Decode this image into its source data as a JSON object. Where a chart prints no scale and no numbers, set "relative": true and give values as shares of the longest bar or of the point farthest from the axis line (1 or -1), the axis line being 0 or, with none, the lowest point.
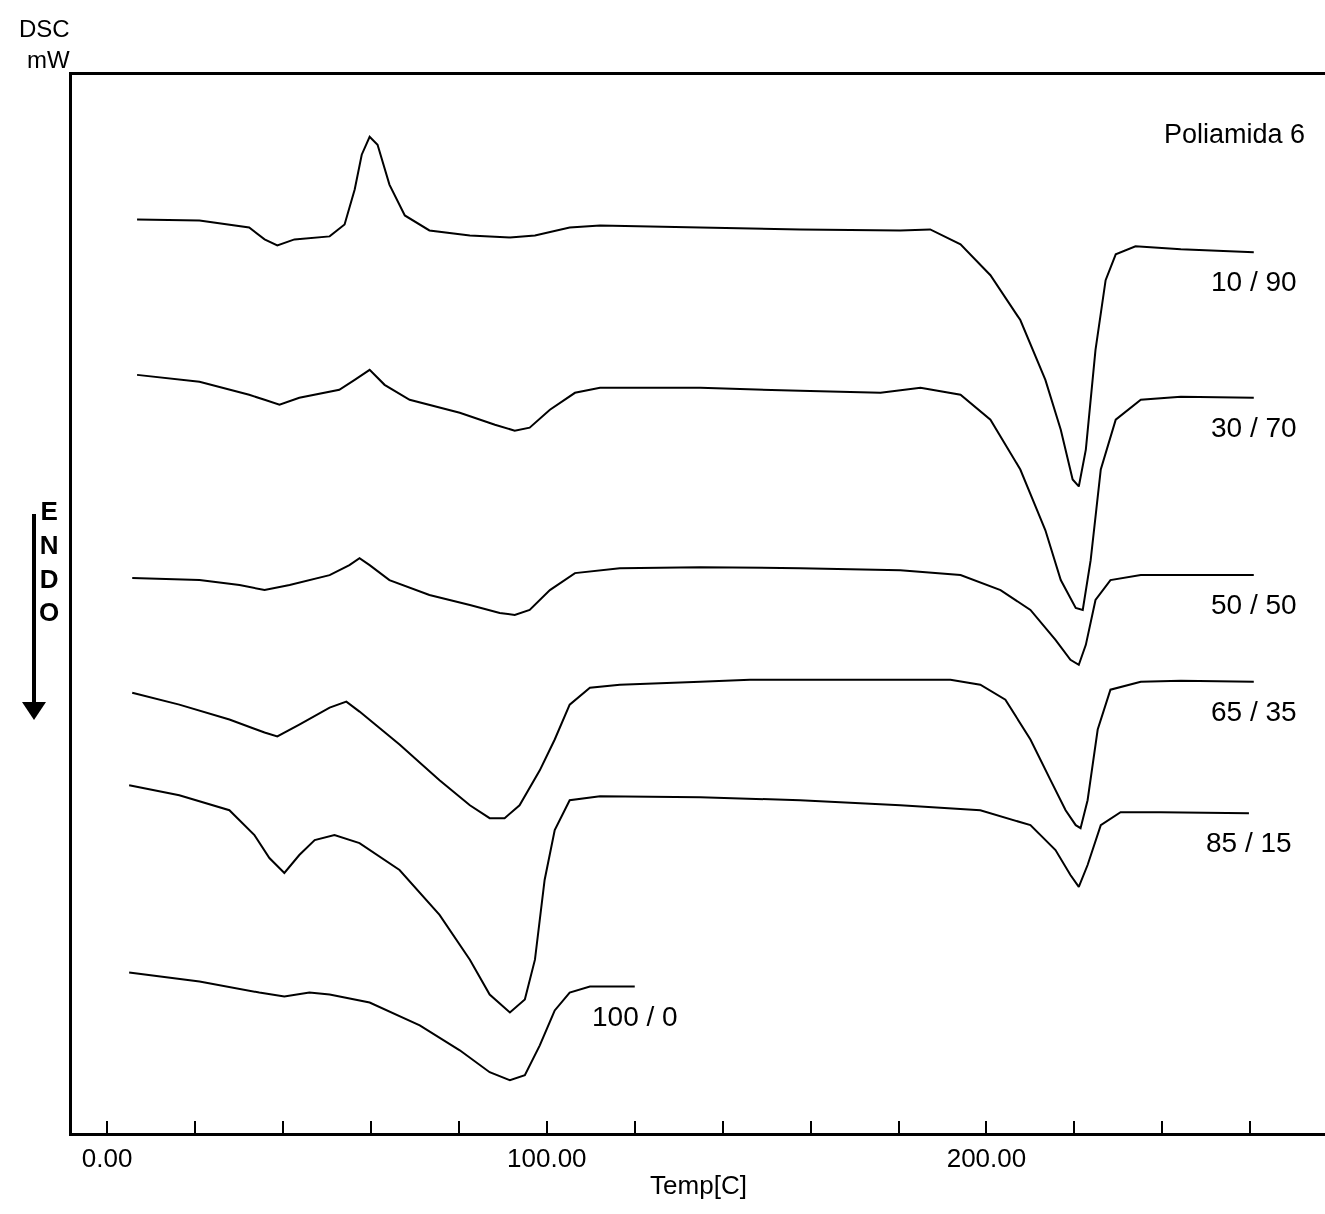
{
  "chart_data": {
    "type": "line",
    "title": "Poliamida 6",
    "xlabel": "Temp[C]",
    "ylabel": "DSC\nmW",
    "relative": true,
    "legend": false,
    "grid": false,
    "marker": "none",
    "line_style": "solid",
    "xlim": [
      -8,
      277
    ],
    "xticks": [
      {
        "value": 0,
        "label": "0.00"
      },
      {
        "value": 20,
        "label": null
      },
      {
        "value": 40,
        "label": null
      },
      {
        "value": 60,
        "label": null
      },
      {
        "value": 80,
        "label": null
      },
      {
        "value": 100,
        "label": "100.00"
      },
      {
        "value": 120,
        "label": null
      },
      {
        "value": 140,
        "label": null
      },
      {
        "value": 160,
        "label": null
      },
      {
        "value": 180,
        "label": null
      },
      {
        "value": 200,
        "label": "200.00"
      },
      {
        "value": 220,
        "label": null
      },
      {
        "value": 240,
        "label": null
      },
      {
        "value": 260,
        "label": null
      }
    ],
    "annotations": [
      "ENDO"
    ],
    "series": [
      {
        "name": "10 / 90",
        "color": "#000000",
        "x": [
          6.8,
          21.0,
          32.3,
          35.8,
          38.7,
          42.6,
          50.6,
          54.0,
          56.3,
          57.9,
          59.7,
          61.5,
          64.2,
          67.7,
          73.3,
          82.5,
          91.6,
          97.3,
          105.2,
          112.1,
          134.9,
          157.6,
          180.4,
          187.2,
          194.1,
          200.9,
          207.7,
          213.4,
          216.9,
          219.6,
          221.0,
          222.6,
          224.8,
          227.1,
          229.4,
          233.9,
          244.2,
          260.8
        ],
        "values": [
          0.917,
          0.916,
          0.909,
          0.897,
          0.891,
          0.897,
          0.9,
          0.912,
          0.947,
          0.982,
          1.0,
          0.992,
          0.952,
          0.921,
          0.906,
          0.901,
          0.899,
          0.901,
          0.909,
          0.911,
          0.909,
          0.907,
          0.906,
          0.907,
          0.892,
          0.861,
          0.816,
          0.756,
          0.706,
          0.656,
          0.649,
          0.686,
          0.786,
          0.856,
          0.882,
          0.89,
          0.887,
          0.884
        ]
      },
      {
        "name": "30 / 70",
        "color": "#000000",
        "x": [
          6.8,
          21.0,
          32.3,
          35.8,
          39.2,
          43.7,
          52.8,
          56.3,
          59.7,
          63.1,
          68.8,
          80.2,
          88.2,
          92.7,
          96.1,
          100.7,
          106.4,
          112.1,
          134.9,
          157.6,
          175.9,
          185.0,
          194.1,
          200.9,
          207.7,
          213.4,
          216.9,
          220.3,
          221.9,
          223.7,
          226.0,
          229.4,
          235.1,
          244.2,
          260.8
        ],
        "values": [
          0.761,
          0.754,
          0.741,
          0.736,
          0.731,
          0.738,
          0.746,
          0.756,
          0.766,
          0.751,
          0.736,
          0.723,
          0.711,
          0.705,
          0.708,
          0.726,
          0.743,
          0.748,
          0.748,
          0.745,
          0.743,
          0.748,
          0.741,
          0.716,
          0.666,
          0.605,
          0.555,
          0.527,
          0.525,
          0.575,
          0.666,
          0.716,
          0.736,
          0.739,
          0.738
        ]
      },
      {
        "name": "50 / 50",
        "color": "#000000",
        "x": [
          5.7,
          21.0,
          30.1,
          35.8,
          41.5,
          50.6,
          55.1,
          57.4,
          59.7,
          64.2,
          73.3,
          82.5,
          89.3,
          92.7,
          96.1,
          100.7,
          106.4,
          116.6,
          134.9,
          157.6,
          180.4,
          194.1,
          203.2,
          210.0,
          215.7,
          219.1,
          221.0,
          222.6,
          224.8,
          228.2,
          235.1,
          244.2,
          260.8
        ],
        "values": [
          0.557,
          0.555,
          0.55,
          0.545,
          0.55,
          0.56,
          0.57,
          0.577,
          0.57,
          0.555,
          0.54,
          0.53,
          0.522,
          0.52,
          0.525,
          0.545,
          0.562,
          0.567,
          0.568,
          0.567,
          0.565,
          0.56,
          0.545,
          0.525,
          0.495,
          0.475,
          0.47,
          0.49,
          0.535,
          0.555,
          0.56,
          0.56,
          0.56
        ]
      },
      {
        "name": "65 / 35",
        "color": "#000000",
        "x": [
          5.7,
          16.4,
          27.8,
          35.8,
          38.7,
          43.7,
          50.6,
          54.4,
          57.4,
          66.5,
          75.6,
          82.5,
          87.0,
          90.4,
          93.8,
          98.4,
          101.8,
          105.2,
          109.8,
          116.6,
          134.9,
          146.2,
          169.0,
          191.8,
          198.6,
          204.3,
          210.0,
          214.6,
          218.0,
          220.3,
          221.4,
          223.0,
          225.3,
          228.2,
          235.1,
          244.2,
          260.8
        ],
        "values": [
          0.442,
          0.43,
          0.415,
          0.402,
          0.398,
          0.41,
          0.427,
          0.433,
          0.423,
          0.39,
          0.354,
          0.329,
          0.316,
          0.316,
          0.329,
          0.364,
          0.395,
          0.43,
          0.447,
          0.45,
          0.453,
          0.455,
          0.455,
          0.455,
          0.45,
          0.435,
          0.395,
          0.354,
          0.324,
          0.309,
          0.306,
          0.334,
          0.405,
          0.445,
          0.453,
          0.454,
          0.453
        ]
      },
      {
        "name": "85 / 15",
        "color": "#000000",
        "x": [
          5.0,
          16.4,
          27.8,
          33.5,
          36.9,
          40.3,
          43.7,
          47.2,
          51.7,
          57.4,
          66.5,
          75.6,
          82.5,
          87.0,
          91.6,
          95.0,
          97.3,
          99.5,
          101.8,
          105.2,
          112.1,
          134.9,
          157.6,
          180.4,
          198.6,
          210.0,
          215.7,
          219.1,
          221.0,
          223.0,
          226.0,
          230.5,
          239.6,
          259.7
        ],
        "values": [
          0.349,
          0.339,
          0.324,
          0.299,
          0.276,
          0.261,
          0.279,
          0.294,
          0.299,
          0.291,
          0.264,
          0.219,
          0.174,
          0.139,
          0.121,
          0.134,
          0.174,
          0.254,
          0.304,
          0.334,
          0.338,
          0.337,
          0.334,
          0.329,
          0.324,
          0.309,
          0.284,
          0.259,
          0.247,
          0.269,
          0.309,
          0.322,
          0.322,
          0.321
        ]
      },
      {
        "name": "100 / 0",
        "color": "#000000",
        "x": [
          5.0,
          21.0,
          34.6,
          40.3,
          46.0,
          50.6,
          59.7,
          71.1,
          80.2,
          87.0,
          91.6,
          95.0,
          98.4,
          101.8,
          105.2,
          109.8,
          120.0
        ],
        "values": [
          0.161,
          0.152,
          0.141,
          0.137,
          0.141,
          0.139,
          0.131,
          0.108,
          0.083,
          0.061,
          0.053,
          0.058,
          0.088,
          0.123,
          0.141,
          0.147,
          0.147
        ]
      }
    ]
  }
}
